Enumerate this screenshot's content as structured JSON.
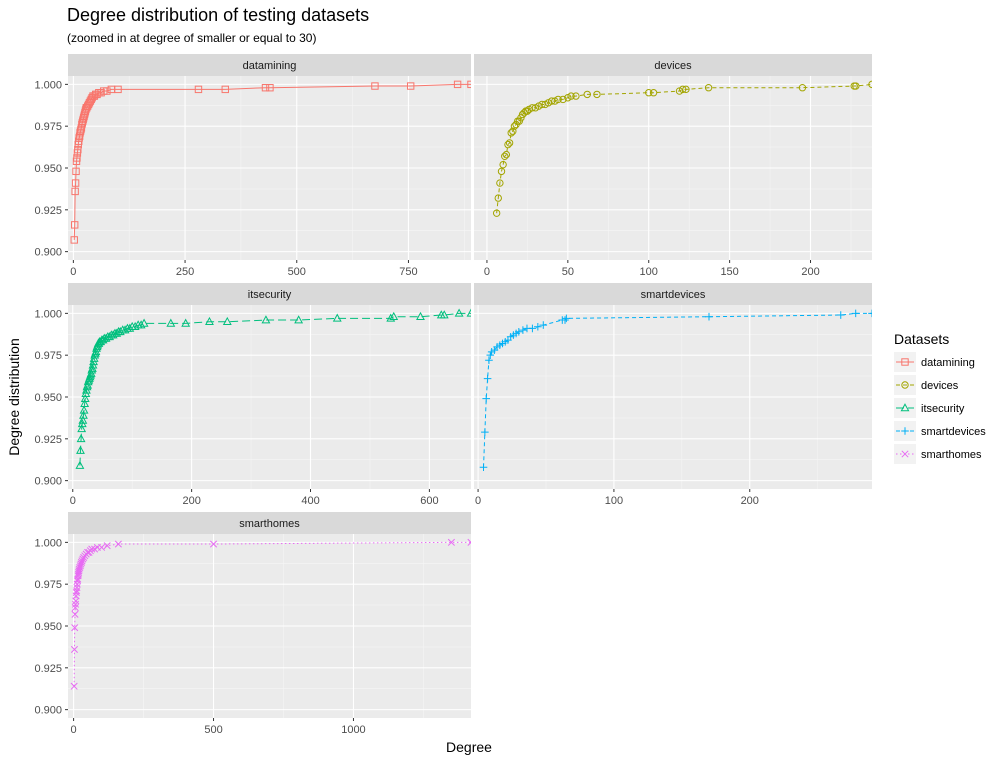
{
  "chart_data": {
    "type": "line",
    "title": "Degree distribution of testing datasets",
    "subtitle": "(zoomed in at degree of smaller or equal to 30)",
    "xlabel": "Degree",
    "ylabel": "Degree distribution",
    "ylim": [
      0.9,
      1.0
    ],
    "y_ticks": [
      0.9,
      0.925,
      0.95,
      0.975,
      1.0
    ],
    "y_tick_labels": [
      "0.900",
      "0.925",
      "0.950",
      "0.975",
      "1.000"
    ],
    "grid": true,
    "legend": {
      "title": "Datasets",
      "position": "right",
      "entries": [
        "datamining",
        "devices",
        "itsecurity",
        "smartdevices",
        "smarthomes"
      ]
    },
    "panels": [
      {
        "name": "datamining",
        "color": "#F8766D",
        "linetype": "solid",
        "shape": "square",
        "xlim": [
          -12,
          890
        ],
        "x_ticks": [
          0,
          250,
          500,
          750
        ],
        "x": [
          2,
          3,
          4,
          5,
          6,
          7,
          8,
          9,
          10,
          11,
          12,
          13,
          14,
          15,
          16,
          17,
          18,
          19,
          20,
          21,
          22,
          23,
          24,
          25,
          26,
          27,
          28,
          29,
          30,
          32,
          34,
          36,
          38,
          40,
          42,
          44,
          47,
          50,
          53,
          57,
          62,
          68,
          75,
          85,
          100,
          280,
          340,
          430,
          440,
          675,
          755,
          860,
          890
        ],
        "y": [
          0.907,
          0.916,
          0.936,
          0.941,
          0.948,
          0.954,
          0.956,
          0.959,
          0.961,
          0.964,
          0.966,
          0.968,
          0.969,
          0.971,
          0.972,
          0.973,
          0.974,
          0.976,
          0.977,
          0.978,
          0.979,
          0.98,
          0.981,
          0.982,
          0.983,
          0.984,
          0.985,
          0.986,
          0.986,
          0.987,
          0.988,
          0.989,
          0.99,
          0.991,
          0.992,
          0.993,
          0.993,
          0.994,
          0.994,
          0.995,
          0.995,
          0.996,
          0.996,
          0.997,
          0.997,
          0.997,
          0.997,
          0.998,
          0.998,
          0.999,
          0.999,
          1.0,
          1.0
        ]
      },
      {
        "name": "devices",
        "color": "#A3A500",
        "linetype": "dashed",
        "shape": "circle",
        "xlim": [
          -8,
          238
        ],
        "x_ticks": [
          0,
          50,
          100,
          150,
          200
        ],
        "x": [
          6,
          7,
          8,
          9,
          10,
          11,
          12,
          13,
          14,
          15,
          16,
          17,
          18,
          19,
          20,
          21,
          22,
          23,
          24,
          25,
          26,
          28,
          30,
          32,
          34,
          36,
          38,
          40,
          42,
          44,
          47,
          50,
          52,
          55,
          62,
          68,
          100,
          103,
          119,
          121,
          123,
          137,
          195,
          227,
          228,
          238
        ],
        "y": [
          0.923,
          0.932,
          0.941,
          0.948,
          0.952,
          0.957,
          0.958,
          0.964,
          0.965,
          0.971,
          0.972,
          0.975,
          0.976,
          0.978,
          0.978,
          0.98,
          0.982,
          0.983,
          0.984,
          0.984,
          0.985,
          0.986,
          0.986,
          0.987,
          0.988,
          0.988,
          0.989,
          0.99,
          0.99,
          0.991,
          0.991,
          0.992,
          0.993,
          0.993,
          0.994,
          0.994,
          0.995,
          0.995,
          0.996,
          0.997,
          0.997,
          0.998,
          0.998,
          0.999,
          0.999,
          1.0
        ]
      },
      {
        "name": "itsecurity",
        "color": "#00BF7D",
        "linetype": "longdash",
        "shape": "triangle",
        "xlim": [
          -8,
          670
        ],
        "x_ticks": [
          0,
          200,
          400,
          600
        ],
        "x": [
          12,
          13,
          14,
          15,
          16,
          17,
          18,
          19,
          20,
          21,
          22,
          23,
          24,
          25,
          26,
          27,
          28,
          29,
          30,
          31,
          32,
          33,
          34,
          35,
          36,
          37,
          38,
          39,
          40,
          41,
          42,
          43,
          44,
          45,
          47,
          49,
          51,
          53,
          56,
          59,
          62,
          65,
          68,
          71,
          74,
          77,
          80,
          84,
          88,
          92,
          96,
          100,
          105,
          110,
          115,
          120,
          165,
          190,
          230,
          260,
          325,
          380,
          445,
          535,
          540,
          585,
          620,
          625,
          650,
          670
        ],
        "y": [
          0.909,
          0.918,
          0.925,
          0.931,
          0.934,
          0.936,
          0.939,
          0.942,
          0.946,
          0.949,
          0.952,
          0.954,
          0.956,
          0.957,
          0.959,
          0.96,
          0.961,
          0.962,
          0.963,
          0.964,
          0.966,
          0.967,
          0.969,
          0.971,
          0.973,
          0.975,
          0.976,
          0.977,
          0.979,
          0.98,
          0.981,
          0.982,
          0.982,
          0.983,
          0.983,
          0.984,
          0.984,
          0.985,
          0.985,
          0.986,
          0.986,
          0.987,
          0.987,
          0.988,
          0.988,
          0.989,
          0.989,
          0.99,
          0.99,
          0.991,
          0.991,
          0.992,
          0.992,
          0.993,
          0.993,
          0.994,
          0.994,
          0.994,
          0.995,
          0.995,
          0.996,
          0.996,
          0.997,
          0.997,
          0.998,
          0.998,
          0.999,
          0.999,
          1.0,
          1.0
        ]
      },
      {
        "name": "smartdevices",
        "color": "#00B0F6",
        "linetype": "dashed",
        "shape": "plus",
        "xlim": [
          -3,
          290
        ],
        "x_ticks": [
          0,
          100,
          200
        ],
        "x": [
          4,
          5,
          6,
          7,
          8,
          9,
          10,
          12,
          14,
          16,
          18,
          20,
          22,
          24,
          26,
          28,
          30,
          33,
          36,
          40,
          44,
          48,
          62,
          64,
          65,
          170,
          267,
          278,
          290
        ],
        "y": [
          0.908,
          0.929,
          0.949,
          0.961,
          0.972,
          0.975,
          0.977,
          0.978,
          0.98,
          0.981,
          0.982,
          0.983,
          0.984,
          0.986,
          0.987,
          0.988,
          0.989,
          0.99,
          0.991,
          0.991,
          0.992,
          0.993,
          0.996,
          0.996,
          0.997,
          0.998,
          0.999,
          1.0,
          1.0
        ]
      },
      {
        "name": "smarthomes",
        "color": "#E76BF3",
        "linetype": "dotted",
        "shape": "cross",
        "xlim": [
          -20,
          1420
        ],
        "x_ticks": [
          0,
          500,
          1000
        ],
        "x": [
          2,
          3,
          4,
          5,
          6,
          7,
          8,
          9,
          10,
          11,
          12,
          13,
          14,
          15,
          16,
          17,
          18,
          19,
          20,
          22,
          24,
          26,
          28,
          30,
          33,
          36,
          40,
          45,
          50,
          55,
          60,
          65,
          75,
          85,
          100,
          120,
          160,
          500,
          1350,
          1420
        ],
        "y": [
          0.914,
          0.936,
          0.949,
          0.957,
          0.961,
          0.963,
          0.965,
          0.968,
          0.97,
          0.971,
          0.973,
          0.975,
          0.977,
          0.978,
          0.98,
          0.981,
          0.982,
          0.983,
          0.984,
          0.985,
          0.986,
          0.987,
          0.988,
          0.989,
          0.99,
          0.991,
          0.992,
          0.993,
          0.994,
          0.994,
          0.995,
          0.996,
          0.996,
          0.997,
          0.997,
          0.998,
          0.999,
          0.999,
          1.0,
          1.0
        ]
      }
    ]
  }
}
